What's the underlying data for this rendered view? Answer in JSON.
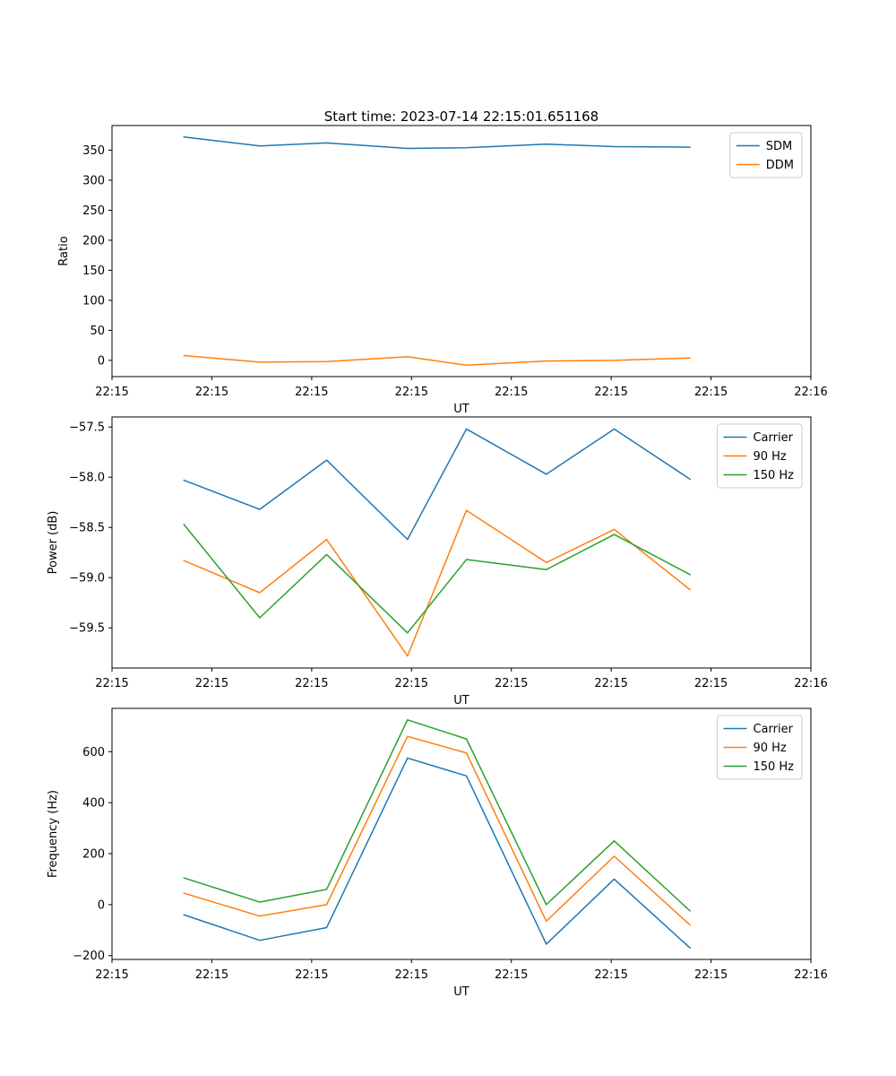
{
  "figure": {
    "background": "#ffffff",
    "text_color": "#000000",
    "axis_color": "#000000",
    "legend_border_color": "#cccccc",
    "legend_fill": "#ffffff"
  },
  "chart_data": [
    {
      "type": "line",
      "title": "Start time: 2023-07-14 22:15:01.651168",
      "xlabel": "UT",
      "ylabel": "Ratio",
      "grid": false,
      "legend_position": "upper right",
      "xlim": [
        0,
        7
      ],
      "ylim": [
        -27,
        391
      ],
      "x_tick_positions": [
        0,
        1,
        2,
        3,
        4,
        5,
        6,
        7
      ],
      "x_tick_labels": [
        "22:15",
        "22:15",
        "22:15",
        "22:15",
        "22:15",
        "22:15",
        "22:15",
        "22:16"
      ],
      "y_tick_values": [
        0,
        50,
        100,
        150,
        200,
        250,
        300,
        350
      ],
      "y_tick_labels": [
        "0",
        "50",
        "100",
        "150",
        "200",
        "250",
        "300",
        "350"
      ],
      "x": [
        0.72,
        1.48,
        2.15,
        2.96,
        3.55,
        4.35,
        5.03,
        5.79
      ],
      "series": [
        {
          "name": "SDM",
          "color": "#1f77b4",
          "values": [
            372,
            357,
            362,
            353,
            354,
            360,
            356,
            355
          ]
        },
        {
          "name": "DDM",
          "color": "#ff7f0e",
          "values": [
            8,
            -3,
            -2,
            6,
            -8,
            -1,
            0,
            4
          ]
        }
      ]
    },
    {
      "type": "line",
      "title": "",
      "xlabel": "UT",
      "ylabel": "Power (dB)",
      "grid": false,
      "legend_position": "upper right",
      "xlim": [
        0,
        7
      ],
      "ylim": [
        -59.9,
        -57.4
      ],
      "x_tick_positions": [
        0,
        1,
        2,
        3,
        4,
        5,
        6,
        7
      ],
      "x_tick_labels": [
        "22:15",
        "22:15",
        "22:15",
        "22:15",
        "22:15",
        "22:15",
        "22:15",
        "22:16"
      ],
      "y_tick_values": [
        -59.5,
        -59.0,
        -58.5,
        -58.0,
        -57.5
      ],
      "y_tick_labels": [
        "−59.5",
        "−59.0",
        "−58.5",
        "−58.0",
        "−57.5"
      ],
      "x": [
        0.72,
        1.48,
        2.15,
        2.96,
        3.55,
        4.35,
        5.03,
        5.79
      ],
      "series": [
        {
          "name": "Carrier",
          "color": "#1f77b4",
          "values": [
            -58.03,
            -58.32,
            -57.83,
            -58.62,
            -57.52,
            -57.97,
            -57.52,
            -58.02
          ]
        },
        {
          "name": "90 Hz",
          "color": "#ff7f0e",
          "values": [
            -58.83,
            -59.15,
            -58.62,
            -59.78,
            -58.33,
            -58.85,
            -58.52,
            -59.12
          ]
        },
        {
          "name": "150 Hz",
          "color": "#2ca02c",
          "values": [
            -58.47,
            -59.4,
            -58.77,
            -59.55,
            -58.82,
            -58.92,
            -58.57,
            -58.97
          ]
        }
      ]
    },
    {
      "type": "line",
      "title": "",
      "xlabel": "UT",
      "ylabel": "Frequency (Hz)",
      "grid": false,
      "legend_position": "upper right",
      "xlim": [
        0,
        7
      ],
      "ylim": [
        -215,
        770
      ],
      "x_tick_positions": [
        0,
        1,
        2,
        3,
        4,
        5,
        6,
        7
      ],
      "x_tick_labels": [
        "22:15",
        "22:15",
        "22:15",
        "22:15",
        "22:15",
        "22:15",
        "22:15",
        "22:16"
      ],
      "y_tick_values": [
        -200,
        0,
        200,
        400,
        600
      ],
      "y_tick_labels": [
        "−200",
        "0",
        "200",
        "400",
        "600"
      ],
      "x": [
        0.72,
        1.48,
        2.15,
        2.96,
        3.55,
        4.35,
        5.03,
        5.79
      ],
      "series": [
        {
          "name": "Carrier",
          "color": "#1f77b4",
          "values": [
            -40,
            -140,
            -90,
            575,
            505,
            -155,
            100,
            -170
          ]
        },
        {
          "name": "90 Hz",
          "color": "#ff7f0e",
          "values": [
            45,
            -45,
            0,
            660,
            595,
            -65,
            190,
            -80
          ]
        },
        {
          "name": "150 Hz",
          "color": "#2ca02c",
          "values": [
            105,
            10,
            60,
            725,
            650,
            0,
            250,
            -25
          ]
        }
      ]
    }
  ]
}
